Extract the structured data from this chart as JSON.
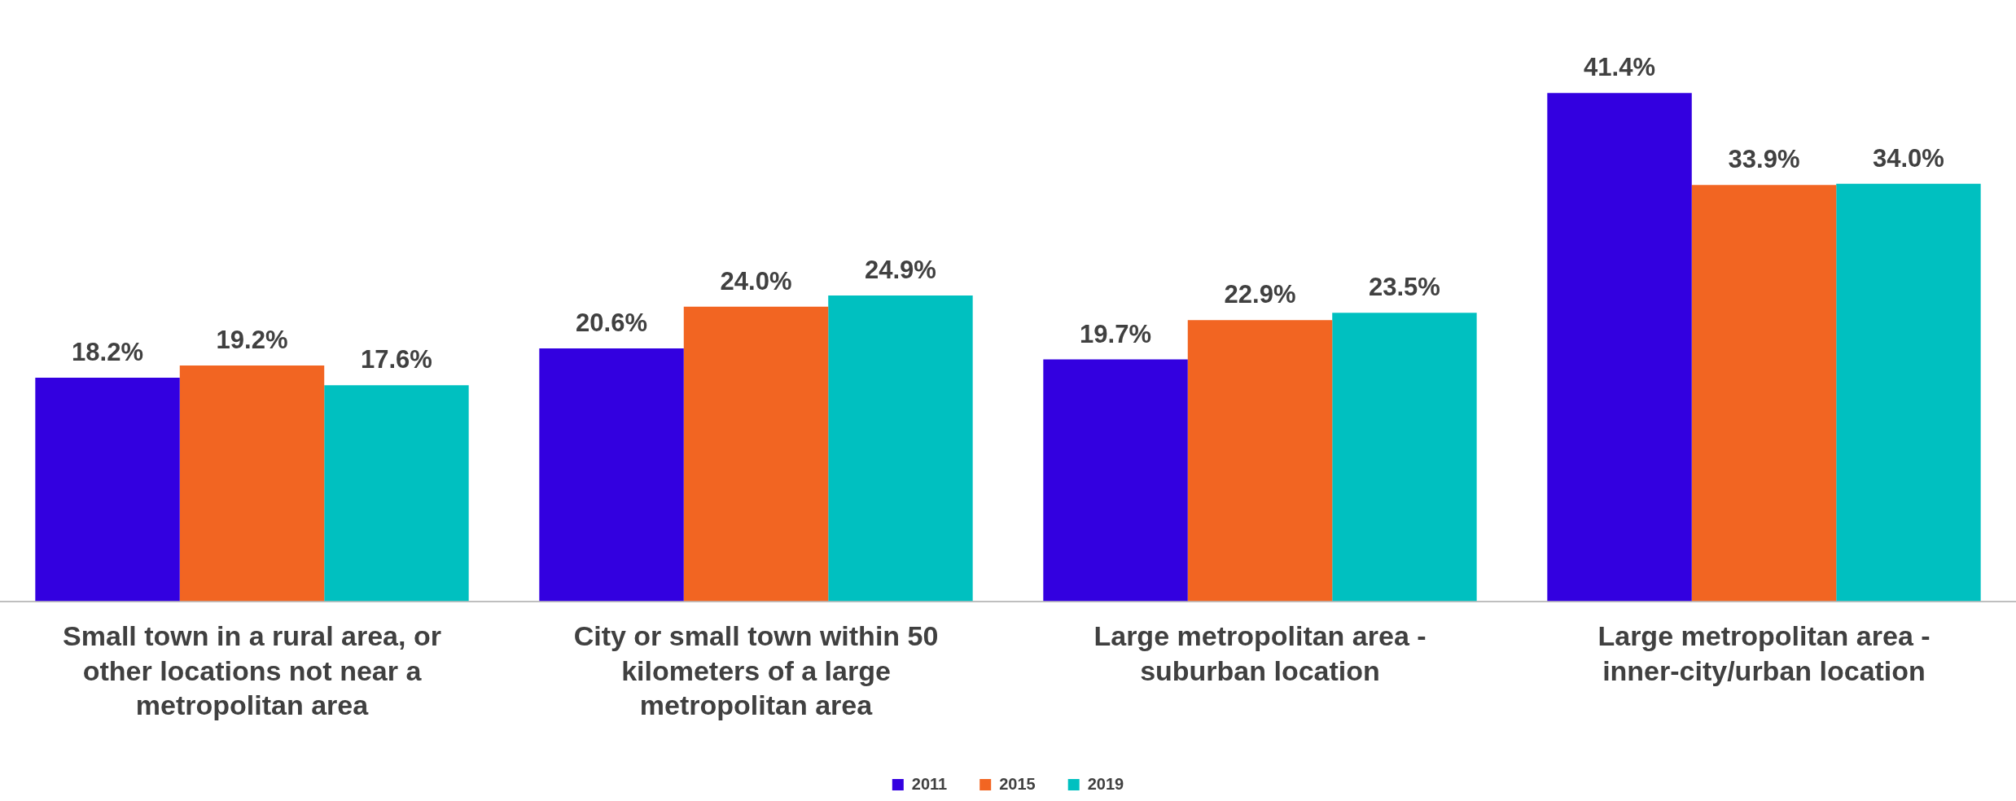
{
  "chart_data": {
    "type": "bar",
    "categories": [
      "Small town in a rural area, or other locations not near a metropolitan area",
      "City or small town within 50 kilometers of a large metropolitan area",
      "Large metropolitan area - suburban location",
      "Large metropolitan area - inner-city/urban location"
    ],
    "series": [
      {
        "name": "2011",
        "color": "#3300e0",
        "values": [
          18.2,
          20.6,
          19.7,
          41.4
        ],
        "value_labels": [
          "18.2%",
          "20.6%",
          "19.7%",
          "41.4%"
        ]
      },
      {
        "name": "2015",
        "color": "#f26522",
        "values": [
          19.2,
          24.0,
          22.9,
          33.9
        ],
        "value_labels": [
          "19.2%",
          "24.0%",
          "22.9%",
          "33.9%"
        ]
      },
      {
        "name": "2019",
        "color": "#00c0c0",
        "values": [
          17.6,
          24.9,
          23.5,
          34.0
        ],
        "value_labels": [
          "17.6%",
          "24.9%",
          "23.5%",
          "34.0%"
        ]
      }
    ],
    "grid": false,
    "legend": "bottom",
    "tick_labels": "x"
  }
}
